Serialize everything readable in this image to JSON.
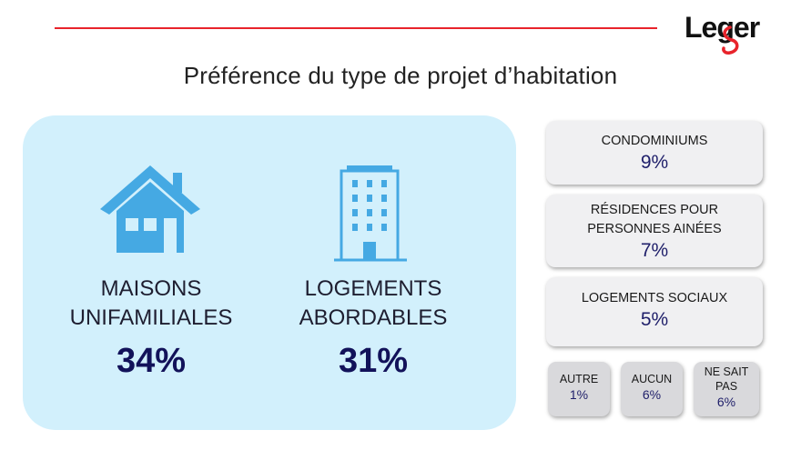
{
  "brand": {
    "logo_text": "Leger",
    "accent_color": "#e8232b"
  },
  "title": "Préférence du type de projet d’habitation",
  "main": {
    "left": {
      "icon": "house-icon",
      "label_line1": "MAISONS",
      "label_line2": "UNIFAMILIALES",
      "percent": "34%"
    },
    "right": {
      "icon": "building-icon",
      "label_line1": "LOGEMENTS",
      "label_line2": "ABORDABLES",
      "percent": "31%"
    }
  },
  "side": [
    {
      "label_line1": "CONDOMINIUMS",
      "label_line2": "",
      "percent": "9%"
    },
    {
      "label_line1": "RÉSIDENCES POUR",
      "label_line2": "PERSONNES AINÉES",
      "percent": "7%"
    },
    {
      "label_line1": "LOGEMENTS SOCIAUX",
      "label_line2": "",
      "percent": "5%"
    }
  ],
  "small": [
    {
      "label_line1": "AUTRE",
      "label_line2": "",
      "percent": "1%"
    },
    {
      "label_line1": "AUCUN",
      "label_line2": "",
      "percent": "6%"
    },
    {
      "label_line1": "NE SAIT",
      "label_line2": "PAS",
      "percent": "6%"
    }
  ],
  "colors": {
    "panel": "#d2f0fc",
    "icon": "#45a9e3",
    "percent_text": "#12125a"
  }
}
